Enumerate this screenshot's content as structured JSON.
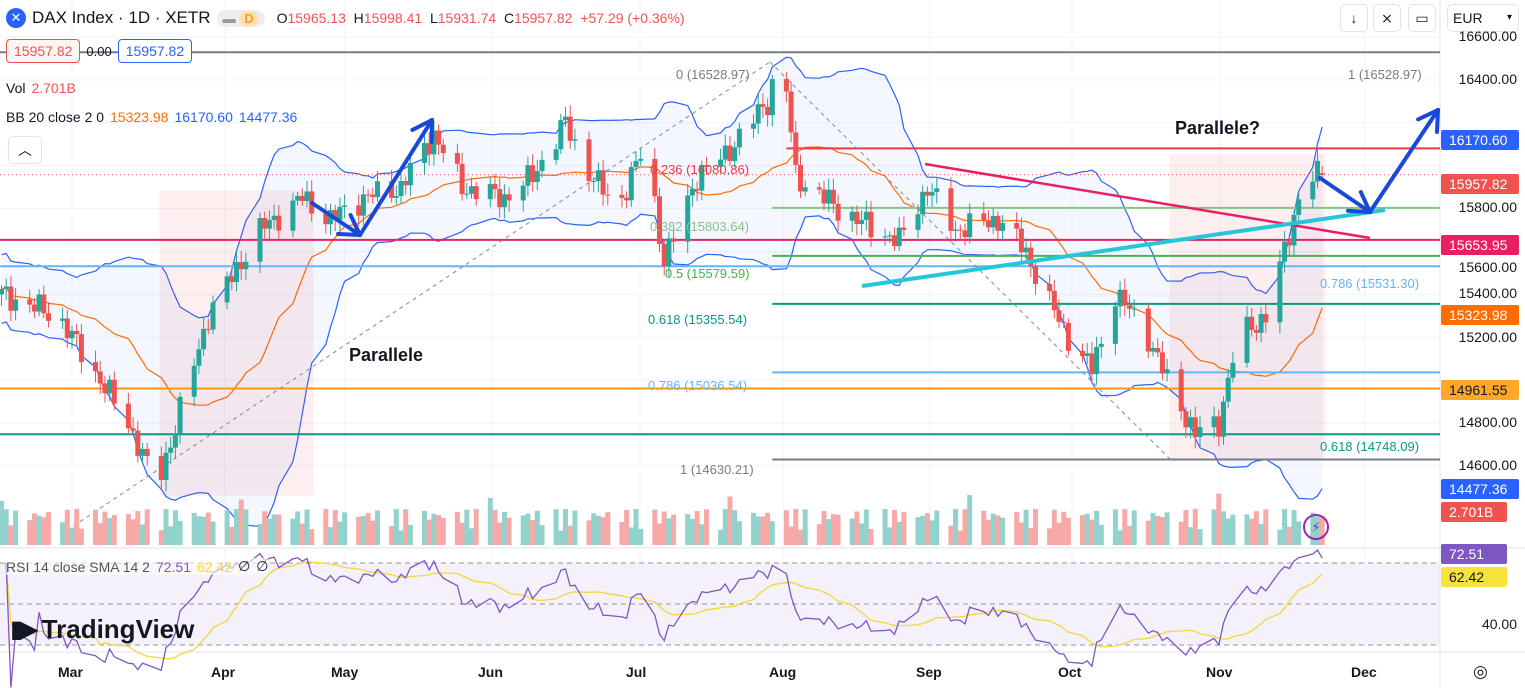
{
  "header": {
    "symbol": "DAX Index · 1D · XETR",
    "market_status": "D",
    "o_label": "O",
    "o": "15965.13",
    "h_label": "H",
    "h": "15998.41",
    "l_label": "L",
    "l": "15931.74",
    "c_label": "C",
    "c": "15957.82",
    "change": "+57.29 (+0.36%)"
  },
  "trade": {
    "sell": "15957.82",
    "spread": "0.00",
    "buy": "15957.82"
  },
  "indicators": {
    "vol_label": "Vol",
    "vol_value": "2.701B",
    "bb_label": "BB 20 close 2 0",
    "bb_basis": "15323.98",
    "bb_upper": "16170.60",
    "bb_lower": "14477.36",
    "rsi_label": "RSI 14 close SMA 14 2",
    "rsi_value": "72.51",
    "rsi_sma": "62.42",
    "rsi_na1": "∅",
    "rsi_na2": "∅"
  },
  "toolbar": {
    "currency": "EUR",
    "collapse_icon": "chevron-up-icon"
  },
  "colors": {
    "up": "#26a69a",
    "down": "#ef5350",
    "bb": "#2962ff",
    "basis": "#ff6d00",
    "rsi": "#7e57c2",
    "rsi_sma": "#f5d63b"
  },
  "chart_data": {
    "type": "candlestick",
    "title": "DAX Index · 1D · XETR",
    "ylim": [
      14400,
      16700
    ],
    "price_ticks": [
      "16600.00",
      "16400.00",
      "15800.00",
      "15600.00",
      "15400.00",
      "15200.00",
      "14800.00",
      "14600.00"
    ],
    "rsi_ticks": [
      "40.00"
    ],
    "time_ticks": [
      "Mar",
      "Apr",
      "May",
      "Jun",
      "Jul",
      "Aug",
      "Sep",
      "Oct",
      "Nov",
      "Dec"
    ],
    "close_path": [
      [
        "2023-02-14",
        15400
      ],
      [
        "2023-02-26",
        15300
      ],
      [
        "2023-03-13",
        14800
      ],
      [
        "2023-03-19",
        14500
      ],
      [
        "2023-03-26",
        15000
      ],
      [
        "2023-03-30",
        15300
      ],
      [
        "2023-04-10",
        15700
      ],
      [
        "2023-04-19",
        15850
      ],
      [
        "2023-04-25",
        15750
      ],
      [
        "2023-05-02",
        15850
      ],
      [
        "2023-05-10",
        15900
      ],
      [
        "2023-05-17",
        16150
      ],
      [
        "2023-05-23",
        15900
      ],
      [
        "2023-06-01",
        15850
      ],
      [
        "2023-06-07",
        15950
      ],
      [
        "2023-06-14",
        16200
      ],
      [
        "2023-06-18",
        16000
      ],
      [
        "2023-06-25",
        15800
      ],
      [
        "2023-07-01",
        16100
      ],
      [
        "2023-07-05",
        15550
      ],
      [
        "2023-07-12",
        15950
      ],
      [
        "2023-07-18",
        16050
      ],
      [
        "2023-07-27",
        16300
      ],
      [
        "2023-07-29",
        16450
      ],
      [
        "2023-07-31",
        16350
      ],
      [
        "2023-08-02",
        15950
      ],
      [
        "2023-08-11",
        15800
      ],
      [
        "2023-08-19",
        15700
      ],
      [
        "2023-08-24",
        15650
      ],
      [
        "2023-08-30",
        15900
      ],
      [
        "2023-09-05",
        15700
      ],
      [
        "2023-09-14",
        15750
      ],
      [
        "2023-09-20",
        15600
      ],
      [
        "2023-09-24",
        15400
      ],
      [
        "2023-09-29",
        15200
      ],
      [
        "2023-10-04",
        15050
      ],
      [
        "2023-10-09",
        15400
      ],
      [
        "2023-10-15",
        15250
      ],
      [
        "2023-10-20",
        15000
      ],
      [
        "2023-10-26",
        14750
      ],
      [
        "2023-10-31",
        14800
      ],
      [
        "2023-11-04",
        15200
      ],
      [
        "2023-11-10",
        15300
      ],
      [
        "2023-11-14",
        15600
      ],
      [
        "2023-11-17",
        15850
      ],
      [
        "2023-11-20",
        15950
      ],
      [
        "2023-11-22",
        15957.82
      ]
    ],
    "levels": [
      {
        "price": 16528.97,
        "color": "#787b86",
        "from": "start"
      },
      {
        "price": 16080.86,
        "color": "#f23645",
        "from": "2023-07-31"
      },
      {
        "price": 15803.64,
        "color": "#81c784",
        "from": "2023-07-28"
      },
      {
        "price": 15653.95,
        "color": "#e91e63",
        "from": "start"
      },
      {
        "price": 15579.59,
        "color": "#4caf50",
        "from": "2023-07-28"
      },
      {
        "price": 15531.3,
        "color": "#64b5f6",
        "from": "start"
      },
      {
        "price": 15355.54,
        "color": "#089981",
        "from": "2023-07-28"
      },
      {
        "price": 15036.54,
        "color": "#64b5f6",
        "from": "2023-07-28"
      },
      {
        "price": 14961.55,
        "color": "#ff9800",
        "from": "start"
      },
      {
        "price": 14748.09,
        "color": "#089981",
        "from": "start"
      },
      {
        "price": 14630.21,
        "color": "#787b86",
        "from": "2023-07-28"
      }
    ],
    "fib_left": [
      {
        "label": "0 (16528.97)",
        "color": "#787b86"
      },
      {
        "label": "0.236 (16080.86)",
        "color": "#f23645"
      },
      {
        "label": "0.382 (15803.64)",
        "color": "#81c784"
      },
      {
        "label": "0.5 (15579.59)",
        "color": "#4caf50"
      },
      {
        "label": "0.618 (15355.54)",
        "color": "#089981"
      },
      {
        "label": "0.786 (15036.54)",
        "color": "#64b5f6"
      },
      {
        "label": "1 (14630.21)",
        "color": "#787b86"
      }
    ],
    "fib_right": [
      {
        "label": "1 (16528.97)",
        "color": "#787b86"
      },
      {
        "label": "0.786 (15531.30)",
        "color": "#64b5f6"
      },
      {
        "label": "0.618 (14748.09)",
        "color": "#089981"
      }
    ],
    "annotations": [
      "Parallele",
      "Parallele?"
    ],
    "badges": [
      {
        "text": "16170.60",
        "color": "#2962ff",
        "fg": "#fff"
      },
      {
        "text": "15957.82",
        "color": "#ef5350",
        "fg": "#fff"
      },
      {
        "text": "15653.95",
        "color": "#e91e63",
        "fg": "#fff"
      },
      {
        "text": "15323.98",
        "color": "#ff6d00",
        "fg": "#fff"
      },
      {
        "text": "14961.55",
        "color": "#ffa726",
        "fg": "#131722"
      },
      {
        "text": "14477.36",
        "color": "#2962ff",
        "fg": "#fff"
      },
      {
        "text": "2.701B",
        "color": "#ef5350",
        "fg": "#fff"
      },
      {
        "text": "72.51",
        "color": "#7e57c2",
        "fg": "#fff"
      },
      {
        "text": "62.42",
        "color": "#f5e33b",
        "fg": "#131722"
      }
    ]
  },
  "watermark": "TradingView"
}
